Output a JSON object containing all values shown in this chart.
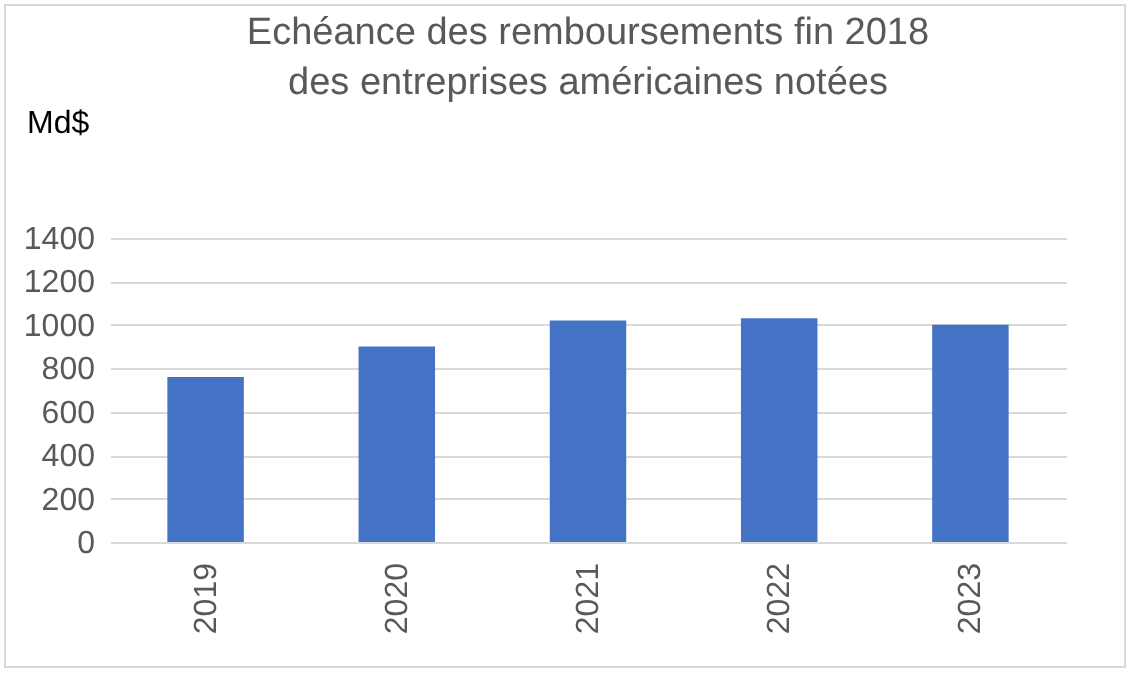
{
  "chart_data": {
    "type": "bar",
    "title": [
      "Echéance des remboursements fin 2018",
      "des entreprises américaines notées"
    ],
    "ylabel": "Md$",
    "categories": [
      "2019",
      "2020",
      "2021",
      "2022",
      "2023"
    ],
    "values": [
      760,
      900,
      1020,
      1030,
      1000
    ],
    "color": "#4472c4",
    "ylim": [
      0,
      1400
    ],
    "yticks": [
      0,
      200,
      400,
      600,
      800,
      1000,
      1200,
      1400
    ],
    "grid": "y"
  }
}
